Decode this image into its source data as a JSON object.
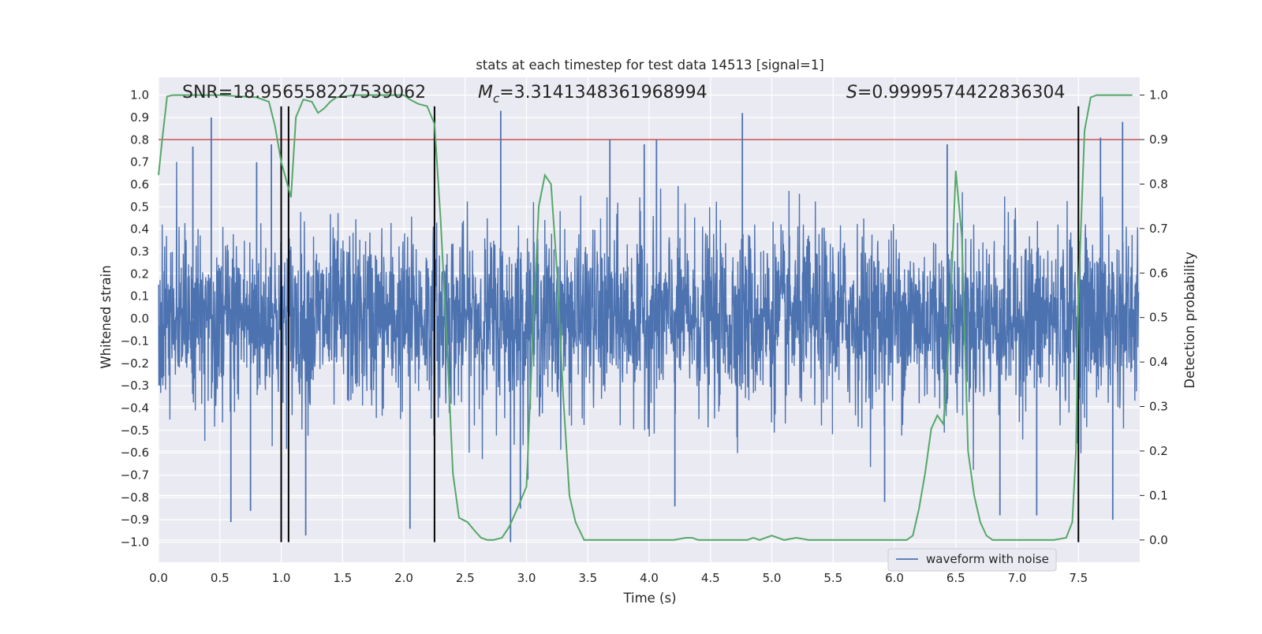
{
  "chart_data": {
    "type": "line",
    "title": "stats at each timestep for test data 14513 [signal=1]",
    "xlabel": "Time (s)",
    "ylabel": "Whitened strain",
    "y2label": "Detection probability",
    "xlim": [
      0,
      8
    ],
    "ylim": [
      -1.09,
      1.08
    ],
    "y2lim": [
      -0.05,
      1.04
    ],
    "x_ticks": [
      "0.0",
      "0.5",
      "1.0",
      "1.5",
      "2.0",
      "2.5",
      "3.0",
      "3.5",
      "4.0",
      "4.5",
      "5.0",
      "5.5",
      "6.0",
      "6.5",
      "7.0",
      "7.5"
    ],
    "y_ticks": [
      "1.0",
      "0.9",
      "0.8",
      "0.7",
      "0.6",
      "0.5",
      "0.4",
      "0.3",
      "0.2",
      "0.1",
      "0.0",
      "−0.1",
      "−0.2",
      "−0.3",
      "−0.4",
      "−0.5",
      "−0.6",
      "−0.7",
      "−0.8",
      "−0.9",
      "−1.0"
    ],
    "y2_ticks": [
      "1.0",
      "0.9",
      "0.8",
      "0.7",
      "0.6",
      "0.5",
      "0.4",
      "0.3",
      "0.2",
      "0.1",
      "0.0"
    ],
    "grid": true,
    "legend_position": "lower right",
    "annotations": {
      "snr": "SNR=18.956558227539062",
      "mc_symbol": "M",
      "mc_sub": "c",
      "mc_value": "=3.3141348361968994",
      "s_symbol": "S",
      "s_value": "=0.9999574422836304"
    },
    "series": [
      {
        "name": "waveform with noise",
        "axis": "left",
        "color": "#4c72b0",
        "description_type": "dense noisy strain",
        "peaks": [
          {
            "x": 0.43,
            "y": 0.9
          },
          {
            "x": 0.28,
            "y": 0.77
          },
          {
            "x": 0.8,
            "y": 0.7
          },
          {
            "x": 0.92,
            "y": 0.78
          },
          {
            "x": 2.79,
            "y": 0.93
          },
          {
            "x": 3.68,
            "y": 0.8
          },
          {
            "x": 3.96,
            "y": 0.78
          },
          {
            "x": 4.06,
            "y": 0.8
          },
          {
            "x": 4.76,
            "y": 0.92
          },
          {
            "x": 6.43,
            "y": 0.78
          },
          {
            "x": 7.68,
            "y": 0.81
          },
          {
            "x": 7.86,
            "y": 0.88
          },
          {
            "x": 0.59,
            "y": -0.91
          },
          {
            "x": 0.75,
            "y": -0.86
          },
          {
            "x": 1.2,
            "y": -0.97
          },
          {
            "x": 2.05,
            "y": -0.94
          },
          {
            "x": 2.87,
            "y": -1.0
          },
          {
            "x": 2.95,
            "y": -0.85
          },
          {
            "x": 4.21,
            "y": -0.84
          },
          {
            "x": 5.92,
            "y": -0.82
          },
          {
            "x": 6.86,
            "y": -0.88
          },
          {
            "x": 7.16,
            "y": -0.88
          },
          {
            "x": 7.78,
            "y": -0.9
          }
        ]
      },
      {
        "name": "",
        "axis": "right",
        "color": "#55a868",
        "x": [
          0.0,
          0.03,
          0.07,
          0.12,
          0.2,
          0.5,
          0.8,
          0.9,
          0.95,
          1.0,
          1.05,
          1.08,
          1.12,
          1.18,
          1.25,
          1.3,
          1.35,
          1.4,
          1.45,
          1.6,
          1.8,
          2.0,
          2.05,
          2.12,
          2.19,
          2.25,
          2.3,
          2.35,
          2.4,
          2.45,
          2.52,
          2.58,
          2.63,
          2.68,
          2.73,
          2.8,
          2.86,
          2.94,
          3.0,
          3.05,
          3.1,
          3.15,
          3.2,
          3.25,
          3.3,
          3.35,
          3.4,
          3.47,
          3.55,
          3.8,
          4.0,
          4.2,
          4.3,
          4.35,
          4.4,
          4.6,
          4.8,
          4.85,
          4.9,
          4.95,
          5.0,
          5.05,
          5.1,
          5.2,
          5.3,
          5.4,
          6.0,
          6.1,
          6.15,
          6.2,
          6.25,
          6.3,
          6.35,
          6.4,
          6.45,
          6.5,
          6.55,
          6.6,
          6.65,
          6.7,
          6.75,
          6.8,
          6.85,
          6.9,
          6.95,
          7.0,
          7.2,
          7.3,
          7.4,
          7.45,
          7.48,
          7.5,
          7.55,
          7.6,
          7.65,
          7.7,
          7.8,
          7.94
        ],
        "y": [
          0.82,
          0.9,
          0.997,
          1.0,
          1.0,
          1.0,
          0.995,
          0.985,
          0.93,
          0.85,
          0.8,
          0.77,
          0.95,
          0.99,
          0.985,
          0.96,
          0.97,
          0.985,
          0.995,
          1.0,
          1.0,
          1.0,
          0.99,
          0.98,
          0.975,
          0.935,
          0.72,
          0.45,
          0.15,
          0.05,
          0.04,
          0.02,
          0.005,
          0.0,
          0.0,
          0.005,
          0.03,
          0.08,
          0.12,
          0.45,
          0.75,
          0.82,
          0.8,
          0.6,
          0.32,
          0.1,
          0.04,
          0.0,
          0.0,
          0.0,
          0.0,
          0.0,
          0.005,
          0.005,
          0.0,
          0.0,
          0.0,
          0.005,
          0.0,
          0.005,
          0.01,
          0.005,
          0.0,
          0.005,
          0.0,
          0.0,
          0.0,
          0.0,
          0.01,
          0.07,
          0.15,
          0.25,
          0.28,
          0.26,
          0.48,
          0.83,
          0.68,
          0.2,
          0.1,
          0.04,
          0.01,
          0.0,
          0.0,
          0.0,
          0.0,
          0.0,
          0.0,
          0.0,
          0.005,
          0.04,
          0.2,
          0.55,
          0.92,
          0.995,
          1.0,
          1.0,
          1.0,
          1.0
        ]
      }
    ],
    "threshold_line": {
      "axis": "right",
      "value": 0.9,
      "color": "#c44e52"
    },
    "vertical_lines": {
      "x": [
        1.0,
        1.06,
        2.25,
        7.5
      ],
      "y_from": -1.0,
      "y_to": 0.95,
      "color": "#000000"
    }
  }
}
